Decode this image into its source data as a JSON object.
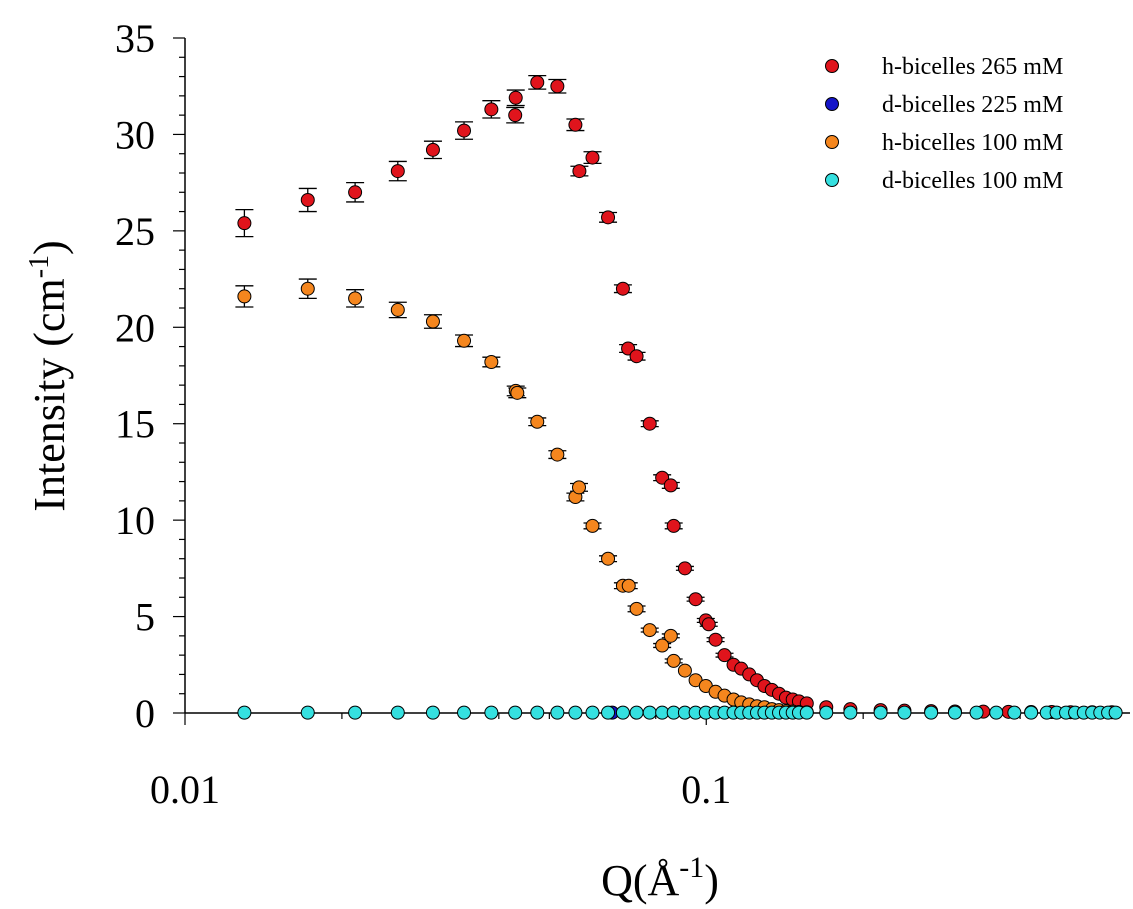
{
  "chart_data": {
    "type": "scatter",
    "title": "",
    "xlabel": "Q(Å",
    "xlabel_sup": "-1",
    "xlabel_suffix": ")",
    "ylabel": "Intensity (cm",
    "ylabel_sup": "-1",
    "ylabel_suffix": ")",
    "x_scale": "log",
    "xlim": [
      0.01,
      0.65
    ],
    "ylim": [
      0,
      35
    ],
    "x_tick_labels": [
      "0.01",
      "0.1"
    ],
    "y_tick_labels": [
      "0",
      "5",
      "10",
      "15",
      "20",
      "25",
      "30",
      "35"
    ],
    "grid": false,
    "legend_position": "top-right",
    "error_bars": true,
    "series": [
      {
        "name": "h-bicelles 265 mM",
        "color": "#e0141c",
        "x": [
          0.013,
          0.0172,
          0.0212,
          0.0256,
          0.0299,
          0.0343,
          0.0387,
          0.043,
          0.0431,
          0.0474,
          0.0518,
          0.0561,
          0.0571,
          0.0605,
          0.0648,
          0.0692,
          0.0708,
          0.0735,
          0.0779,
          0.0823,
          0.0855,
          0.0866,
          0.091,
          0.0954,
          0.0998,
          0.1011,
          0.1042,
          0.1084,
          0.1128,
          0.1167,
          0.1209,
          0.1251,
          0.1293,
          0.1336,
          0.1379,
          0.1422,
          0.1465,
          0.1506,
          0.1559,
          0.1699,
          0.189,
          0.216,
          0.24,
          0.27,
          0.3,
          0.34,
          0.38,
          0.42,
          0.46,
          0.5,
          0.55,
          0.6
        ],
        "values": [
          25.4,
          26.6,
          27.0,
          28.1,
          29.2,
          30.2,
          31.3,
          31.0,
          31.9,
          32.7,
          32.5,
          30.5,
          28.1,
          28.8,
          25.7,
          22.0,
          18.9,
          18.5,
          15.0,
          12.2,
          11.8,
          9.7,
          7.5,
          5.9,
          4.8,
          4.6,
          3.8,
          3.0,
          2.5,
          2.3,
          2.0,
          1.7,
          1.4,
          1.2,
          1.0,
          0.8,
          0.7,
          0.6,
          0.5,
          0.3,
          0.2,
          0.15,
          0.12,
          0.1,
          0.08,
          0.07,
          0.06,
          0.05,
          0.05,
          0.04,
          0.04,
          0.04
        ],
        "errors": [
          0.7,
          0.6,
          0.5,
          0.5,
          0.45,
          0.45,
          0.45,
          0.4,
          0.4,
          0.35,
          0.35,
          0.3,
          0.25,
          0.3,
          0.25,
          0.2,
          0.2,
          0.2,
          0.15,
          0.15,
          0.15,
          0.15,
          0.1,
          0.1,
          0.1,
          0.1,
          0.1,
          0.1,
          0.08,
          0.08,
          0.08,
          0.06,
          0.06,
          0.06,
          0.05,
          0.05,
          0.05,
          0.05,
          0.05,
          0.05,
          0.04,
          0.04,
          0.04,
          0.04,
          0.03,
          0.03,
          0.03,
          0.03,
          0.03,
          0.03,
          0.03,
          0.03
        ]
      },
      {
        "name": "d-bicelles 225 mM",
        "color": "#1414c8",
        "x": [
          0.066
        ],
        "values": [
          0.02
        ],
        "errors": [
          0.0
        ]
      },
      {
        "name": "h-bicelles 100 mM",
        "color": "#f5861e",
        "x": [
          0.013,
          0.0172,
          0.0212,
          0.0256,
          0.0299,
          0.0343,
          0.0387,
          0.0431,
          0.0434,
          0.0474,
          0.0518,
          0.0561,
          0.057,
          0.0605,
          0.0648,
          0.0692,
          0.071,
          0.0735,
          0.0779,
          0.0823,
          0.0855,
          0.0866,
          0.091,
          0.0954,
          0.0998,
          0.1042,
          0.1084,
          0.1128,
          0.1167,
          0.1209,
          0.1251,
          0.1293,
          0.1336,
          0.1379,
          0.1422,
          0.1465,
          0.1506,
          0.1559
        ],
        "values": [
          21.6,
          22.0,
          21.5,
          20.9,
          20.3,
          19.3,
          18.2,
          16.7,
          16.6,
          15.1,
          13.4,
          11.2,
          11.7,
          9.7,
          8.0,
          6.6,
          6.6,
          5.4,
          4.3,
          3.5,
          4.0,
          2.7,
          2.2,
          1.7,
          1.4,
          1.1,
          0.9,
          0.7,
          0.55,
          0.45,
          0.35,
          0.3,
          0.2,
          0.15,
          0.1,
          0.08,
          0.05,
          0.04
        ],
        "errors": [
          0.55,
          0.5,
          0.45,
          0.4,
          0.35,
          0.3,
          0.25,
          0.25,
          0.25,
          0.2,
          0.2,
          0.2,
          0.2,
          0.15,
          0.15,
          0.15,
          0.15,
          0.15,
          0.1,
          0.1,
          0.1,
          0.1,
          0.08,
          0.08,
          0.08,
          0.06,
          0.06,
          0.05,
          0.05,
          0.05,
          0.05,
          0.04,
          0.04,
          0.04,
          0.03,
          0.03,
          0.03,
          0.03
        ]
      },
      {
        "name": "d-bicelles 100 mM",
        "color": "#35e0e0",
        "x": [
          0.013,
          0.0172,
          0.0212,
          0.0256,
          0.0299,
          0.0343,
          0.0387,
          0.043,
          0.0474,
          0.0518,
          0.0561,
          0.0605,
          0.0648,
          0.0692,
          0.0735,
          0.0779,
          0.0823,
          0.0866,
          0.091,
          0.0954,
          0.0998,
          0.1042,
          0.1084,
          0.1128,
          0.1167,
          0.1209,
          0.1251,
          0.1293,
          0.1336,
          0.1379,
          0.1422,
          0.1465,
          0.1506,
          0.1559,
          0.1699,
          0.189,
          0.216,
          0.24,
          0.27,
          0.3,
          0.33,
          0.36,
          0.39,
          0.42,
          0.45,
          0.47,
          0.49,
          0.51,
          0.53,
          0.55,
          0.57,
          0.59,
          0.61
        ],
        "values": [
          0.02,
          0.02,
          0.02,
          0.02,
          0.02,
          0.02,
          0.02,
          0.02,
          0.02,
          0.02,
          0.02,
          0.02,
          0.02,
          0.02,
          0.02,
          0.02,
          0.02,
          0.02,
          0.02,
          0.02,
          0.02,
          0.02,
          0.02,
          0.02,
          0.02,
          0.02,
          0.02,
          0.02,
          0.02,
          0.02,
          0.02,
          0.02,
          0.02,
          0.02,
          0.02,
          0.02,
          0.02,
          0.02,
          0.02,
          0.02,
          0.02,
          0.02,
          0.02,
          0.02,
          0.02,
          0.02,
          0.02,
          0.02,
          0.02,
          0.02,
          0.02,
          0.02,
          0.02
        ],
        "errors": []
      }
    ]
  }
}
